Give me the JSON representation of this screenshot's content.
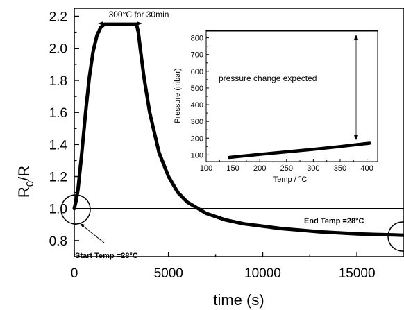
{
  "chart_data": [
    {
      "type": "line",
      "xlabel": "time (s)",
      "ylabel": "R0/R",
      "ylabel_main": "R",
      "ylabel_sub": "0",
      "ylabel_rest": "/R",
      "xlim": [
        0,
        17500
      ],
      "ylim": [
        0.7,
        2.25
      ],
      "xticks": [
        0,
        5000,
        10000,
        15000
      ],
      "xtick_labels": [
        "0",
        "5000",
        "10000",
        "15000"
      ],
      "yticks": [
        0.8,
        1.0,
        1.2,
        1.4,
        1.6,
        1.8,
        2.0,
        2.2
      ],
      "ytick_labels": [
        "0.8",
        "1.0",
        "1.2",
        "1.4",
        "1.6",
        "1.8",
        "2.0",
        "2.2"
      ],
      "grid": false,
      "series": [
        {
          "x": [
            0,
            100,
            200,
            400,
            600,
            800,
            1000,
            1200,
            1400,
            1600,
            1800,
            2000,
            2500,
            3000,
            3300,
            3400,
            3500,
            3700,
            4000,
            4500,
            5000,
            5500,
            6000,
            7000,
            8000,
            9000,
            10000,
            11000,
            12000,
            13000,
            14000,
            15000,
            16000,
            17000,
            17500
          ],
          "y": [
            1.0,
            1.05,
            1.12,
            1.35,
            1.6,
            1.82,
            1.98,
            2.08,
            2.13,
            2.15,
            2.15,
            2.15,
            2.15,
            2.15,
            2.15,
            2.1,
            2.0,
            1.82,
            1.6,
            1.35,
            1.2,
            1.1,
            1.04,
            0.97,
            0.93,
            0.905,
            0.89,
            0.875,
            0.865,
            0.855,
            0.848,
            0.842,
            0.838,
            0.835,
            0.833
          ]
        },
        {
          "x": [
            0,
            17500
          ],
          "y": [
            1.0,
            1.0
          ]
        }
      ],
      "annotations": [
        {
          "text": "300°C for 30min",
          "x": 2450,
          "y": 2.245
        },
        {
          "text": "Start Temp =28°C",
          "x": 60,
          "y": 0.825
        },
        {
          "text": "End Temp =28°C",
          "x": 12200,
          "y": 0.89
        }
      ]
    },
    {
      "type": "line",
      "xlabel": "Temp /  °C",
      "ylabel": "Pressure (mbar)",
      "xlim": [
        100,
        420
      ],
      "ylim": [
        60,
        840
      ],
      "xticks": [
        100,
        150,
        200,
        250,
        300,
        350,
        400
      ],
      "xtick_labels": [
        "100",
        "150",
        "200",
        "250",
        "300",
        "350",
        "400"
      ],
      "yticks": [
        100,
        200,
        300,
        400,
        500,
        600,
        700,
        800
      ],
      "ytick_labels": [
        "100",
        "200",
        "300",
        "400",
        "500",
        "600",
        "700",
        "800"
      ],
      "grid": false,
      "series": [
        {
          "x": [
            143,
            200,
            250,
            300,
            350,
            405
          ],
          "y": [
            85,
            103,
            118,
            133,
            150,
            170
          ]
        },
        {
          "x": [
            100,
            420
          ],
          "y": [
            845,
            845
          ]
        }
      ],
      "annotations": [
        {
          "text": "pressure change expected",
          "x": 285,
          "y": 640
        }
      ]
    }
  ]
}
